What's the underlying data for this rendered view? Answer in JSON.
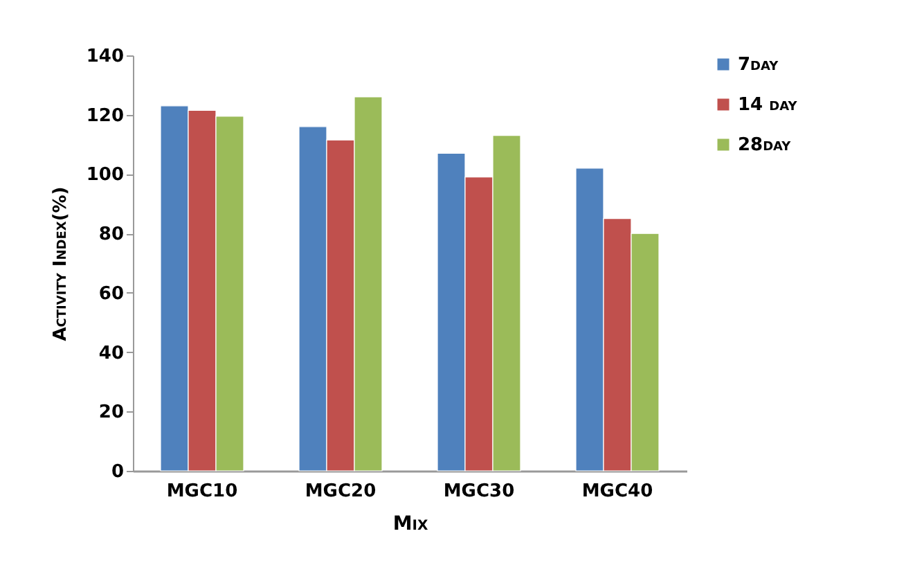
{
  "chart_data": {
    "type": "bar",
    "xlabel": "Mix",
    "ylabel": "Activity Index(%)",
    "categories": [
      "MGC10",
      "MGC20",
      "MGC30",
      "MGC40"
    ],
    "series": [
      {
        "name": "7day",
        "color": "#4f81bd",
        "values": [
          123,
          116,
          107,
          102
        ]
      },
      {
        "name": "14 day",
        "color": "#c0504d",
        "values": [
          121.5,
          111.5,
          99,
          85
        ]
      },
      {
        "name": "28day",
        "color": "#9bbb59",
        "values": [
          119.5,
          126,
          113,
          80
        ]
      }
    ],
    "ylim": [
      0,
      140
    ],
    "yticks": [
      0,
      20,
      40,
      60,
      80,
      100,
      120,
      140
    ],
    "grid": false,
    "legend": "right"
  }
}
